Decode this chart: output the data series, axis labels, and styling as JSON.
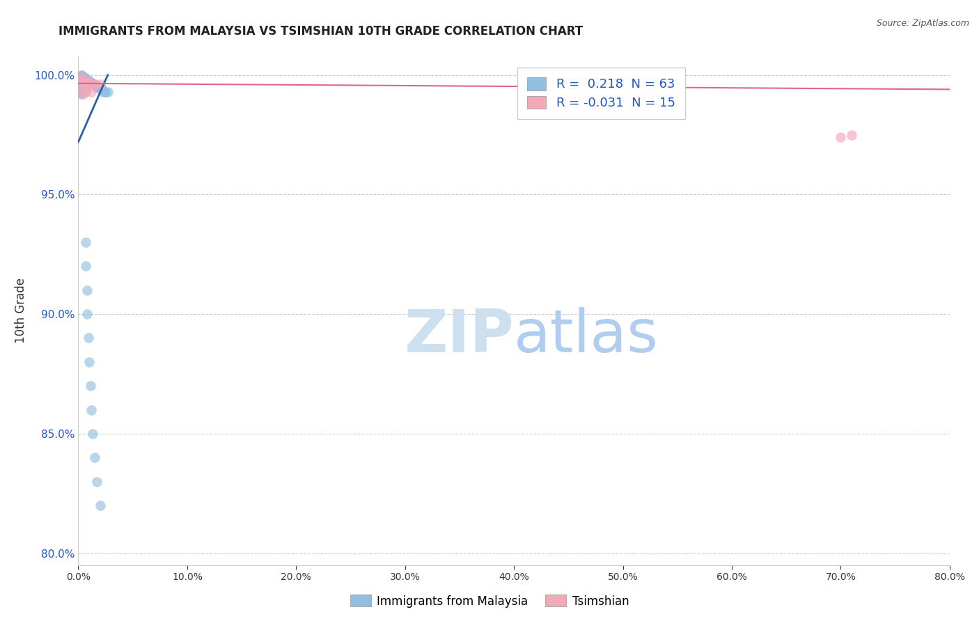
{
  "title": "IMMIGRANTS FROM MALAYSIA VS TSIMSHIAN 10TH GRADE CORRELATION CHART",
  "source": "Source: ZipAtlas.com",
  "ylabel": "10th Grade",
  "xlim": [
    0.0,
    0.8
  ],
  "ylim": [
    0.795,
    1.008
  ],
  "yticks": [
    0.8,
    0.85,
    0.9,
    0.95,
    1.0
  ],
  "ytick_labels": [
    "80.0%",
    "85.0%",
    "90.0%",
    "95.0%",
    "100.0%"
  ],
  "xticks": [
    0.0,
    0.1,
    0.2,
    0.3,
    0.4,
    0.5,
    0.6,
    0.7,
    0.8
  ],
  "xtick_labels": [
    "0.0%",
    "10.0%",
    "20.0%",
    "30.0%",
    "40.0%",
    "50.0%",
    "60.0%",
    "70.0%",
    "80.0%"
  ],
  "blue_color": "#92bfdf",
  "pink_color": "#f4a8b8",
  "blue_line_color": "#2c5fa8",
  "pink_line_color": "#e06880",
  "blue_scatter_x": [
    0.003,
    0.003,
    0.004,
    0.005,
    0.006,
    0.007,
    0.008,
    0.009,
    0.01,
    0.011,
    0.012,
    0.013,
    0.014,
    0.015,
    0.016,
    0.017,
    0.018,
    0.019,
    0.02,
    0.021,
    0.022,
    0.023,
    0.024,
    0.025,
    0.027,
    0.001,
    0.001,
    0.001,
    0.001,
    0.001,
    0.001,
    0.001,
    0.001,
    0.002,
    0.002,
    0.002,
    0.002,
    0.002,
    0.002,
    0.002,
    0.003,
    0.003,
    0.003,
    0.003,
    0.004,
    0.004,
    0.004,
    0.005,
    0.005,
    0.006,
    0.006,
    0.007,
    0.007,
    0.008,
    0.008,
    0.009,
    0.01,
    0.011,
    0.012,
    0.013,
    0.015,
    0.017,
    0.02
  ],
  "blue_scatter_y": [
    1.0,
    1.0,
    0.999,
    0.999,
    0.999,
    0.998,
    0.998,
    0.998,
    0.997,
    0.997,
    0.997,
    0.996,
    0.996,
    0.996,
    0.995,
    0.995,
    0.995,
    0.995,
    0.994,
    0.994,
    0.994,
    0.993,
    0.993,
    0.993,
    0.993,
    0.999,
    0.999,
    0.998,
    0.997,
    0.996,
    0.995,
    0.994,
    0.993,
    0.998,
    0.997,
    0.996,
    0.995,
    0.994,
    0.993,
    0.992,
    0.997,
    0.996,
    0.995,
    0.994,
    0.996,
    0.995,
    0.994,
    0.995,
    0.994,
    0.994,
    0.993,
    0.93,
    0.92,
    0.91,
    0.9,
    0.89,
    0.88,
    0.87,
    0.86,
    0.85,
    0.84,
    0.83,
    0.82
  ],
  "pink_scatter_x": [
    0.003,
    0.005,
    0.01,
    0.013,
    0.016,
    0.02,
    0.003,
    0.007,
    0.012,
    0.004,
    0.7,
    0.71,
    0.004,
    0.006,
    0.008
  ],
  "pink_scatter_y": [
    0.999,
    0.997,
    0.997,
    0.996,
    0.996,
    0.996,
    0.994,
    0.993,
    0.993,
    0.992,
    0.974,
    0.975,
    0.998,
    0.997,
    0.995
  ],
  "blue_trend_x": [
    0.0,
    0.027
  ],
  "blue_trend_y": [
    0.972,
    1.0
  ],
  "pink_trend_x": [
    0.0,
    0.8
  ],
  "pink_trend_y": [
    0.9965,
    0.994
  ]
}
